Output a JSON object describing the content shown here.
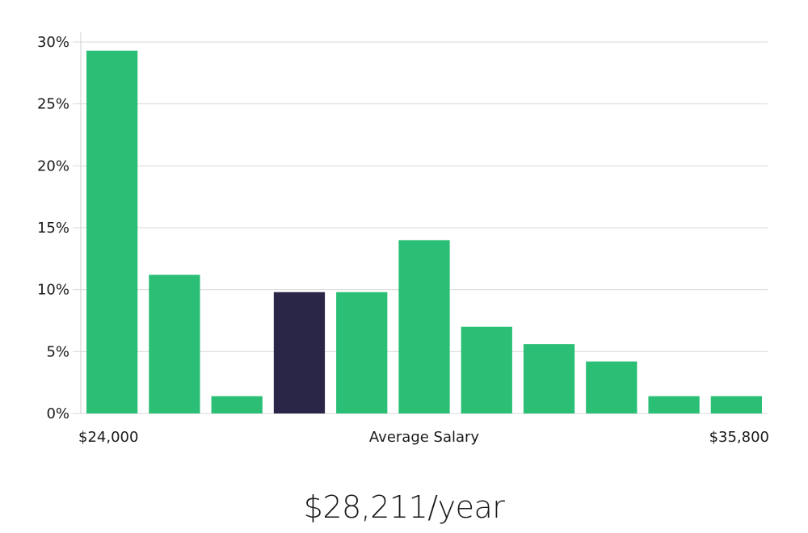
{
  "chart_data": {
    "type": "bar",
    "title": "",
    "xlabel": "Average Salary",
    "ylabel": "",
    "x_min_label": "$24,000",
    "x_max_label": "$35,800",
    "ylim": [
      0,
      30
    ],
    "yticks": [
      "0%",
      "5%",
      "10%",
      "15%",
      "20%",
      "25%",
      "30%"
    ],
    "ytick_values": [
      0,
      5,
      10,
      15,
      20,
      25,
      30
    ],
    "grid": true,
    "values": [
      29.3,
      11.2,
      1.4,
      9.8,
      9.8,
      14.0,
      7.0,
      5.6,
      4.2,
      1.4,
      1.4
    ],
    "highlight_index": 3,
    "colors": {
      "bar": "#2bbf76",
      "highlight": "#2a2647"
    }
  },
  "salary": {
    "value": "$28,211/year"
  }
}
